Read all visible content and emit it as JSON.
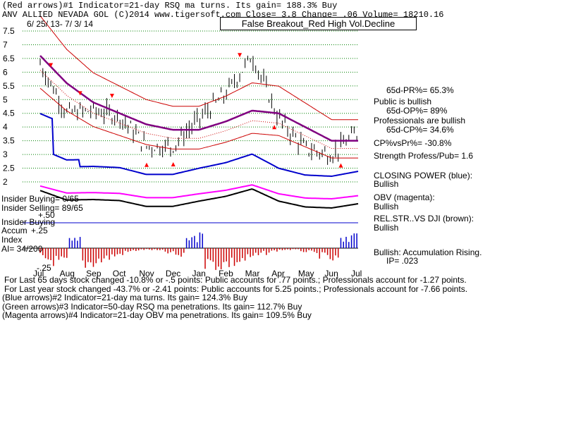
{
  "header": {
    "line1": "(Red arrows)#1 Indicator=21-day RSQ ma turns. Its gain= 188.3% Buy",
    "line2": "ANV      ALLIED NEVADA GOL       (C)2014 www.tigersoft.com   Close=  3.8  Change=  .06 Volume= 18210.16",
    "date_range": "6/ 25/ 13- 7/ 3/ 14"
  },
  "boxed_title": "False Breakout_Red High Vol.Decline",
  "panel_labels": {
    "insider_buying": "Insider Buying= 0/65",
    "insider_selling": "Insider Selling= 89/65",
    "insider_buying2": "Insider Buying",
    "accum": "Accum",
    "index": "Index",
    "ai": "AI= 34/200",
    "accum_plus": "+.25",
    "accum_plus50": "+.50",
    "accum_minus": "-.25"
  },
  "right_stats": [
    "65d-PR%= 65.3%",
    "Public is bullish",
    "65d-OP%= 89%",
    "Professionals are bullish",
    "65d-CP%= 34.6%",
    "CP%vsPr%= -30.8%",
    "Strength Profess/Pub= 1.6",
    "CLOSING POWER (blue):",
    "Bullish",
    "OBV (magenta):",
    "Bullish",
    "REL.STR..VS DJI (brown):",
    "Bullish",
    "Bullish: Accumulation Rising.",
    "IP=  .023"
  ],
  "footer": [
    "For Last 65 days stock changed -10.8% or -.5 points:  Public accounts for  .77 points.;  Professionals account for -1.27 points.",
    "For Last year stock changed -43.7% or -2.41 points:  Public accounts for  5.25 points.;  Professionals account for -7.66 points.",
    "(Blue arrows)#2 Indicator=21-day ma turns. Its gain= 124.3% Buy",
    "(Green arrows)#3 Indicator=50-day RSQ ma penetrations. Its gain= 112.7% Buy",
    "(Magenta arrows)#4 Indicator=21-day OBV ma penetrations. Its gain= 109.5% Buy"
  ],
  "colors": {
    "price": "#000000",
    "ma_red": "#cc0000",
    "ma_purple": "#800080",
    "closing_power": "#0000cc",
    "obv": "#ff00ff",
    "rel_str": "#000000",
    "grid": "#008000",
    "accum_bar": "#cc0000",
    "accum_bar_pos": "#0000cc"
  },
  "chart_data": {
    "type": "line",
    "title": "False Breakout_Red High Vol.Decline",
    "xlabel": "",
    "ylabel": "",
    "x_ticks": [
      "Jul",
      "Aug",
      "Sep",
      "Oct",
      "Nov",
      "Dec",
      "Jan",
      "Feb",
      "Mar",
      "Apr",
      "May",
      "Jun",
      "Jul"
    ],
    "y_ticks": [
      "2",
      "2.5",
      "3",
      "3.5",
      "4",
      "4.5",
      "5",
      "5.5",
      "6",
      "6.5",
      "7",
      "7.5"
    ],
    "ylim": [
      2,
      7.5
    ],
    "grid": true,
    "series": [
      {
        "name": "price",
        "x": [
          "Jul",
          "Aug",
          "Sep",
          "Oct",
          "Nov",
          "Dec",
          "Jan",
          "Feb",
          "Mar",
          "Apr",
          "May",
          "Jun",
          "Jul"
        ],
        "values": [
          6.3,
          4.5,
          4.6,
          4.4,
          3.3,
          3.3,
          4.3,
          5.2,
          6.6,
          4.3,
          3.2,
          3.0,
          3.8
        ]
      },
      {
        "name": "purple ma",
        "x": [
          "Jul",
          "Aug",
          "Sep",
          "Oct",
          "Nov",
          "Dec",
          "Jan",
          "Feb",
          "Mar",
          "Apr",
          "May",
          "Jun",
          "Jul"
        ],
        "values": [
          6.6,
          5.6,
          4.9,
          4.5,
          4.1,
          3.9,
          3.9,
          4.2,
          4.6,
          4.5,
          4.0,
          3.5,
          3.5
        ]
      }
    ],
    "accumulation_index": {
      "ylim": [
        -0.25,
        0.5
      ],
      "ai": "34/200",
      "ip": ".023"
    }
  }
}
